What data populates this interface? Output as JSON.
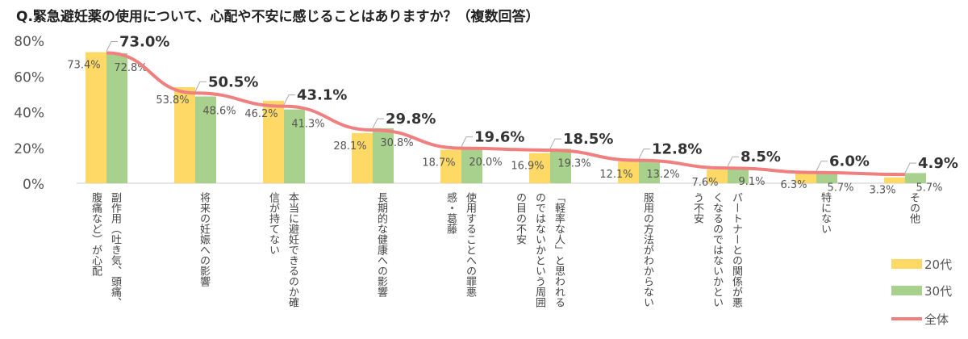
{
  "title": "Q.緊急避妊薬の使用について、心配や不安に感じることはありますか？（複数回答）",
  "chart_data": {
    "type": "bar",
    "ylim": [
      0,
      80
    ],
    "yticks": [
      "0%",
      "20%",
      "40%",
      "60%",
      "80%"
    ],
    "grid": false,
    "legend_placement": "bottom-right",
    "categories": [
      [
        "副作用（吐き気、頭痛、",
        "腹痛など）が心配"
      ],
      [
        "将来の妊娠への影響"
      ],
      [
        "本当に避妊できるのか確",
        "信が持てない"
      ],
      [
        "長期的な健康への影響"
      ],
      [
        "使用することへの罪悪",
        "感・葛藤"
      ],
      [
        "「軽率な人」と思われる",
        "のではないかという周囲",
        "の目の不安"
      ],
      [
        "服用の方法がわからない"
      ],
      [
        "パートナーとの関係が悪",
        "くなるのではないかとい",
        "う不安"
      ],
      [
        "特にない"
      ],
      [
        "その他"
      ]
    ],
    "series": [
      {
        "name": "20代",
        "type": "bar",
        "color": "#FFD966",
        "values": [
          73.4,
          53.8,
          46.2,
          28.1,
          18.7,
          16.9,
          12.1,
          7.6,
          6.3,
          3.3
        ],
        "labels": [
          "73.4%",
          "53.8%",
          "46.2%",
          "28.1%",
          "18.7%",
          "16.9%",
          "12.1%",
          "7.6%",
          "6.3%",
          "3.3%"
        ]
      },
      {
        "name": "30代",
        "type": "bar",
        "color": "#A9D18E",
        "values": [
          72.8,
          48.6,
          41.3,
          30.8,
          20.0,
          19.3,
          13.2,
          9.1,
          5.7,
          5.7
        ],
        "labels": [
          "72.8%",
          "48.6%",
          "41.3%",
          "30.8%",
          "20.0%",
          "19.3%",
          "13.2%",
          "9.1%",
          "5.7%",
          "5.7%"
        ]
      },
      {
        "name": "全体",
        "type": "line",
        "color": "#F08080",
        "values": [
          73.0,
          50.5,
          43.1,
          29.8,
          19.6,
          18.5,
          12.8,
          8.5,
          6.0,
          4.9
        ],
        "labels": [
          "73.0%",
          "50.5%",
          "43.1%",
          "29.8%",
          "19.6%",
          "18.5%",
          "12.8%",
          "8.5%",
          "6.0%",
          "4.9%"
        ]
      }
    ]
  }
}
